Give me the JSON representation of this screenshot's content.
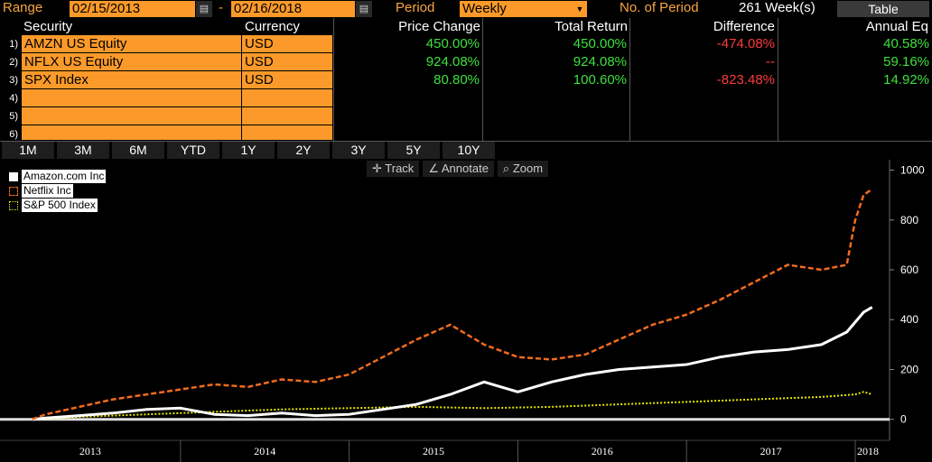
{
  "toolbar": {
    "range_label": "Range",
    "start_date": "02/15/2013",
    "dash": "-",
    "end_date": "02/16/2018",
    "period_label": "Period",
    "period_value": "Weekly",
    "nperiod_label": "No. of Period",
    "nperiod_value": "261 Week(s)",
    "table_button": "Table"
  },
  "grid": {
    "headers": [
      "Security",
      "Currency",
      "Price Change",
      "Total Return",
      "Difference",
      "Annual Eq"
    ],
    "rows": [
      {
        "num": "1)",
        "security": "AMZN US Equity",
        "currency": "USD",
        "price_change": "450.00%",
        "total_return": "450.00%",
        "difference": "-474.08%",
        "annual_eq": "40.58%"
      },
      {
        "num": "2)",
        "security": "NFLX US Equity",
        "currency": "USD",
        "price_change": "924.08%",
        "total_return": "924.08%",
        "difference": "--",
        "annual_eq": "59.16%"
      },
      {
        "num": "3)",
        "security": "SPX Index",
        "currency": "USD",
        "price_change": "80.80%",
        "total_return": "100.60%",
        "difference": "-823.48%",
        "annual_eq": "14.92%"
      },
      {
        "num": "4)"
      },
      {
        "num": "5)"
      },
      {
        "num": "6)"
      }
    ]
  },
  "period_tabs": [
    "1M",
    "3M",
    "6M",
    "YTD",
    "1Y",
    "2Y",
    "3Y",
    "5Y",
    "10Y"
  ],
  "chart_tools": {
    "track": "Track",
    "annotate": "Annotate",
    "zoom": "Zoom"
  },
  "colors": {
    "amazon": "#ffffff",
    "netflix": "#f26b1d",
    "spx": "#e8e800"
  },
  "chart_data": {
    "type": "line",
    "y_ticks": [
      "1000",
      "800",
      "600",
      "400",
      "200",
      "0"
    ],
    "ylim": [
      -30,
      1020
    ],
    "x_labels": [
      "2013",
      "2014",
      "2015",
      "2016",
      "2017",
      "2018"
    ],
    "legend": [
      "Amazon.com Inc",
      "Netflix Inc",
      "S&P 500 Index"
    ],
    "series": [
      {
        "name": "Amazon.com Inc",
        "x": [
          2013.12,
          2013.2,
          2013.4,
          2013.6,
          2013.8,
          2014.0,
          2014.2,
          2014.4,
          2014.6,
          2014.8,
          2015.0,
          2015.2,
          2015.4,
          2015.6,
          2015.8,
          2016.0,
          2016.2,
          2016.4,
          2016.6,
          2016.8,
          2017.0,
          2017.2,
          2017.4,
          2017.6,
          2017.8,
          2017.95,
          2018.05,
          2018.1
        ],
        "values": [
          0,
          5,
          15,
          25,
          40,
          45,
          20,
          15,
          25,
          15,
          20,
          40,
          60,
          100,
          150,
          110,
          150,
          180,
          200,
          210,
          220,
          250,
          270,
          280,
          300,
          350,
          430,
          450
        ]
      },
      {
        "name": "Netflix Inc",
        "x": [
          2013.12,
          2013.2,
          2013.4,
          2013.6,
          2013.8,
          2014.0,
          2014.2,
          2014.4,
          2014.6,
          2014.8,
          2015.0,
          2015.2,
          2015.4,
          2015.6,
          2015.8,
          2016.0,
          2016.2,
          2016.4,
          2016.6,
          2016.8,
          2017.0,
          2017.2,
          2017.4,
          2017.6,
          2017.8,
          2017.95,
          2018.0,
          2018.05,
          2018.1
        ],
        "values": [
          0,
          20,
          50,
          80,
          100,
          120,
          140,
          130,
          160,
          150,
          180,
          250,
          320,
          380,
          300,
          250,
          240,
          260,
          320,
          380,
          420,
          480,
          550,
          620,
          600,
          620,
          800,
          900,
          924
        ]
      },
      {
        "name": "S&P 500 Index",
        "x": [
          2013.12,
          2013.4,
          2013.8,
          2014.2,
          2014.6,
          2015.0,
          2015.4,
          2015.8,
          2016.2,
          2016.6,
          2017.0,
          2017.4,
          2017.8,
          2018.0,
          2018.05,
          2018.1
        ],
        "values": [
          0,
          10,
          20,
          30,
          40,
          45,
          50,
          45,
          50,
          60,
          70,
          80,
          90,
          100,
          110,
          100
        ]
      }
    ]
  }
}
